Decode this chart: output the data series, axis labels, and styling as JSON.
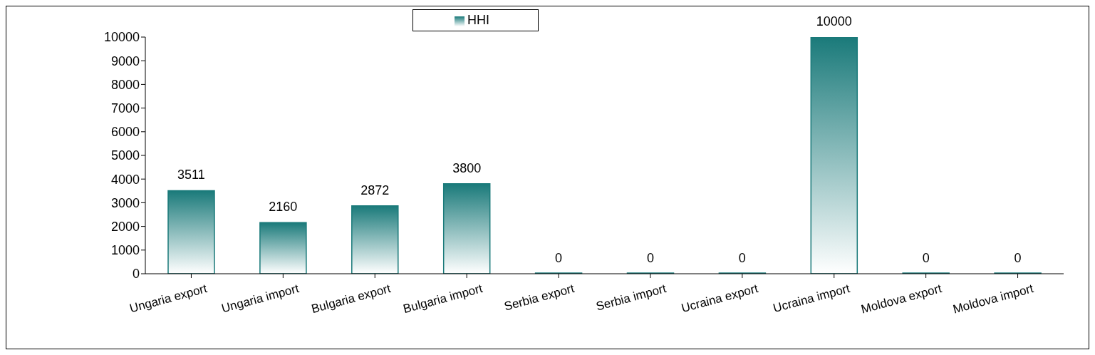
{
  "chart_data": {
    "type": "bar",
    "categories": [
      "Ungaria export",
      "Ungaria import",
      "Bulgaria export",
      "Bulgaria import",
      "Serbia export",
      "Serbia import",
      "Ucraina export",
      "Ucraina import",
      "Moldova export",
      "Moldova import"
    ],
    "series": [
      {
        "name": "HHI",
        "color": "#1a7a7a",
        "values": [
          3511,
          2160,
          2872,
          3800,
          0,
          0,
          0,
          10000,
          0,
          0
        ]
      }
    ],
    "ylim": [
      0,
      10000
    ],
    "yticks": [
      0,
      1000,
      2000,
      3000,
      4000,
      5000,
      6000,
      7000,
      8000,
      9000,
      10000
    ],
    "legend": "top",
    "data_labels": true
  }
}
